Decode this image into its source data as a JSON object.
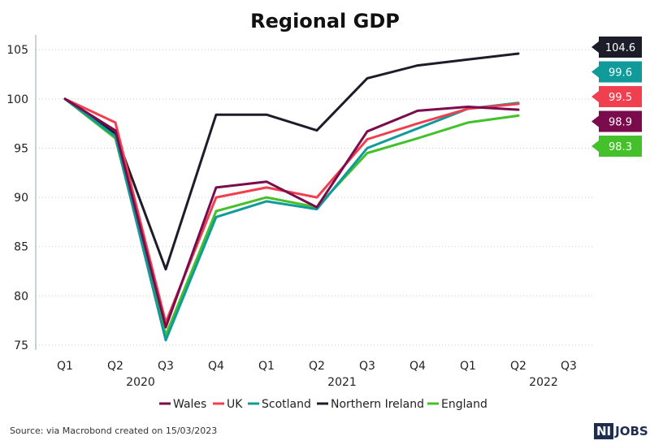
{
  "chart_data": {
    "type": "line",
    "title": "Regional GDP",
    "xlabel": "",
    "ylabel": "",
    "categories": [
      "Q1",
      "Q2",
      "Q3",
      "Q4",
      "Q1",
      "Q2",
      "Q3",
      "Q4",
      "Q1",
      "Q2",
      "Q3"
    ],
    "year_labels": [
      {
        "label": "2020",
        "index": 1
      },
      {
        "label": "2021",
        "index": 5
      },
      {
        "label": "2022",
        "index": 9
      }
    ],
    "yticks": [
      75,
      80,
      85,
      90,
      95,
      100,
      105
    ],
    "ylim": [
      74.5,
      106.5
    ],
    "grid": true,
    "legend": "bottom",
    "series": [
      {
        "name": "Wales",
        "color": "#7a0c4e",
        "values": [
          100,
          96.8,
          76.8,
          91.0,
          91.6,
          89.0,
          96.7,
          98.8,
          99.2,
          98.9,
          null
        ],
        "end_label": "98.9"
      },
      {
        "name": "UK",
        "color": "#f0404f",
        "values": [
          100,
          97.6,
          77.3,
          90.0,
          91.0,
          90.0,
          95.9,
          97.5,
          99.0,
          99.5,
          null
        ],
        "end_label": "99.5"
      },
      {
        "name": "Scotland",
        "color": "#119a9a",
        "values": [
          100,
          96.2,
          75.5,
          88.0,
          89.6,
          88.8,
          95.0,
          97.0,
          99.0,
          99.6,
          null
        ],
        "end_label": "99.6"
      },
      {
        "name": "Northern Ireland",
        "color": "#1c1c2b",
        "values": [
          100,
          96.5,
          82.7,
          98.4,
          98.4,
          96.8,
          102.1,
          103.4,
          104.0,
          104.6,
          null
        ],
        "end_label": "104.6"
      },
      {
        "name": "England",
        "color": "#44c12a",
        "values": [
          100,
          96.0,
          76.0,
          88.6,
          90.0,
          89.0,
          94.5,
          96.0,
          97.6,
          98.3,
          null
        ],
        "end_label": "98.3"
      }
    ],
    "end_label_order": [
      "Northern Ireland",
      "Scotland",
      "UK",
      "Wales",
      "England"
    ]
  },
  "footer": {
    "source": "Source:  via Macrobond created on 15/03/2023",
    "logo_ni": "NI",
    "logo_jobs": "JOBS"
  }
}
